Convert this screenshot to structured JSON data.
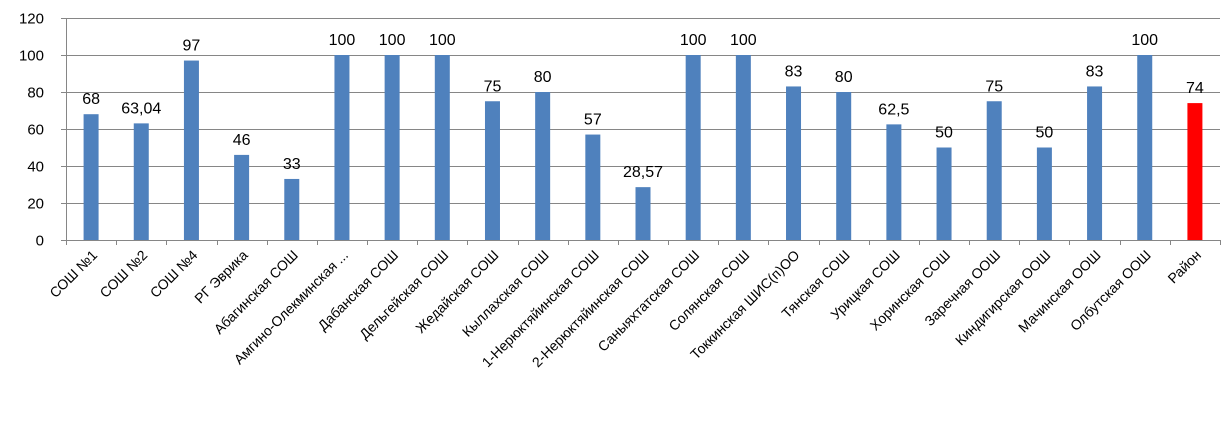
{
  "chart_data": {
    "type": "bar",
    "title": "",
    "xlabel": "",
    "ylabel": "",
    "ylim": [
      0,
      120
    ],
    "yticks": [
      0,
      20,
      40,
      60,
      80,
      100,
      120
    ],
    "grid": true,
    "categories": [
      "СОШ №1",
      "СОШ №2",
      "СОШ №4",
      "РГ Эврика",
      "Абагинская СОШ",
      "Амгино-Олекминская ...",
      "Дабанская СОШ",
      "Дельгейская СОШ",
      "Жедайская СОШ",
      "Кыллахская СОШ",
      "1-Нерюктяйинская СОШ",
      "2-Нерюктяйинская СОШ",
      "Саныяхтатская СОШ",
      "Солянская СОШ",
      "Токкинская ШИС(п)ОО",
      "Тянская СОШ",
      "Урицкая СОШ",
      "Хоринская СОШ",
      "Заречная ООШ",
      "Киндигирская ООШ",
      "Мачинская ООШ",
      "Олбутская ООШ",
      "Район"
    ],
    "values": [
      68,
      63.04,
      97,
      46,
      33,
      100,
      100,
      100,
      75,
      80,
      57,
      28.57,
      100,
      100,
      83,
      80,
      62.5,
      50,
      75,
      50,
      83,
      100,
      74
    ],
    "data_labels": [
      "68",
      "63,04",
      "97",
      "46",
      "33",
      "100",
      "100",
      "100",
      "75",
      "80",
      "57",
      "28,57",
      "100",
      "100",
      "83",
      "80",
      "62,5",
      "50",
      "75",
      "50",
      "83",
      "100",
      "74"
    ],
    "bar_color": "#4F81BD",
    "highlight_color": "#FF0000",
    "highlight_index": 22
  }
}
